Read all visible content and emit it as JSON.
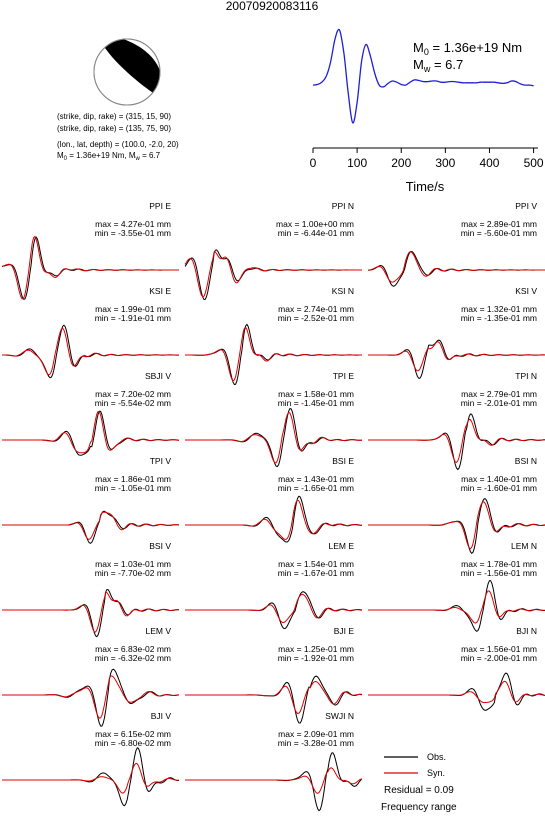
{
  "title": "20070920083116",
  "focal_mechanism": {
    "plane1": "(strike, dip, rake) = (315, 15, 90)",
    "plane2": "(strike, dip, rake) = (135, 75, 90)",
    "location": "(lon., lat, depth) = (100.0, -2.0, 20)",
    "moment_label": "M",
    "moment_sub": "0",
    "moment_value": " = 1.36e+19 Nm, M",
    "mag_sub": "w",
    "mag_value": " = 6.7"
  },
  "stf": {
    "m0_label": "M",
    "m0_sub": "0",
    "m0_value": " = 1.36e+19 Nm",
    "mw_label": "M",
    "mw_sub": "w",
    "mw_value": " = 6.7",
    "xlabel": "Time/s",
    "xticks": [
      "0",
      "100",
      "200",
      "300",
      "400",
      "500"
    ],
    "color": "#1f1fd6"
  },
  "legend": {
    "obs": "Obs.",
    "syn": "Syn.",
    "obs_color": "#000000",
    "syn_color": "#e00000",
    "residual": "Residual = 0.09",
    "freq": "Frequency range"
  },
  "chart_data": {
    "type": "line",
    "source_time_function": {
      "x": [
        0,
        10,
        20,
        30,
        40,
        50,
        60,
        70,
        80,
        90,
        100,
        110,
        120,
        130,
        140,
        150,
        160,
        170,
        180,
        190,
        200,
        210,
        220,
        230,
        240,
        250,
        260,
        270,
        280,
        290,
        300,
        310,
        320,
        330,
        340,
        350,
        360,
        370,
        380,
        390,
        400,
        410,
        420,
        430,
        440,
        450,
        460,
        470,
        480,
        490,
        500
      ],
      "y": [
        0.05,
        0.06,
        0.1,
        0.2,
        0.45,
        0.85,
        1.0,
        0.6,
        -0.1,
        -0.6,
        -0.25,
        0.45,
        0.75,
        0.55,
        0.25,
        0.05,
        0.02,
        0.08,
        0.12,
        0.1,
        0.06,
        0.05,
        0.1,
        0.14,
        0.13,
        0.11,
        0.11,
        0.12,
        0.12,
        0.1,
        0.1,
        0.11,
        0.11,
        0.1,
        0.09,
        0.09,
        0.09,
        0.09,
        0.1,
        0.1,
        0.1,
        0.1,
        0.09,
        0.08,
        0.09,
        0.12,
        0.11,
        0.07,
        0.05,
        0.05,
        0.04
      ],
      "xlim": [
        0,
        510
      ],
      "xlabel": "Time/s"
    },
    "stations": [
      {
        "label": "PPI E",
        "max": "max = 4.27e-01 mm",
        "min": "min = -3.55e-01 mm",
        "peak": 0.16,
        "width": 0.18,
        "syn_scale": 1.0
      },
      {
        "label": "PPI N",
        "max": "max = 1.00e+00 mm",
        "min": "min = -6.44e-01 mm",
        "peak": 0.16,
        "width": 0.2,
        "syn_scale": 0.95
      },
      {
        "label": "PPI V",
        "max": "max = 2.89e-01 mm",
        "min": "min = -5.60e-01 mm",
        "peak": 0.2,
        "width": 0.14,
        "syn_scale": 0.85
      },
      {
        "label": "KSI E",
        "max": "max = 1.99e-01 mm",
        "min": "min = -1.91e-01 mm",
        "peak": 0.3,
        "width": 0.18,
        "syn_scale": 0.85
      },
      {
        "label": "KSI N",
        "max": "max = 2.74e-01 mm",
        "min": "min = -2.52e-01 mm",
        "peak": 0.32,
        "width": 0.16,
        "syn_scale": 0.9
      },
      {
        "label": "KSI V",
        "max": "max = 1.32e-01 mm",
        "min": "min = -1.35e-01 mm",
        "peak": 0.34,
        "width": 0.14,
        "syn_scale": 0.75
      },
      {
        "label": "SBJI V",
        "max": "max = 7.20e-02 mm",
        "min": "min = -5.54e-02 mm",
        "peak": 0.5,
        "width": 0.18,
        "syn_scale": 0.9
      },
      {
        "label": "TPI E",
        "max": "max = 1.58e-01 mm",
        "min": "min = -1.45e-01 mm",
        "peak": 0.55,
        "width": 0.2,
        "syn_scale": 0.85
      },
      {
        "label": "TPI N",
        "max": "max = 2.79e-01 mm",
        "min": "min = -2.01e-01 mm",
        "peak": 0.55,
        "width": 0.16,
        "syn_scale": 0.8
      },
      {
        "label": "TPI V",
        "max": "max = 1.86e-01 mm",
        "min": "min = -1.05e-01 mm",
        "peak": 0.55,
        "width": 0.12,
        "syn_scale": 0.9
      },
      {
        "label": "BSI E",
        "max": "max = 1.43e-01 mm",
        "min": "min = -1.65e-01 mm",
        "peak": 0.6,
        "width": 0.18,
        "syn_scale": 0.8
      },
      {
        "label": "BSI N",
        "max": "max = 1.40e-01 mm",
        "min": "min = -1.60e-01 mm",
        "peak": 0.62,
        "width": 0.16,
        "syn_scale": 0.85
      },
      {
        "label": "BSI V",
        "max": "max = 1.03e-01 mm",
        "min": "min = -7.70e-02 mm",
        "peak": 0.58,
        "width": 0.14,
        "syn_scale": 0.9
      },
      {
        "label": "LEM E",
        "max": "max = 1.54e-01 mm",
        "min": "min = -1.67e-01 mm",
        "peak": 0.62,
        "width": 0.16,
        "syn_scale": 0.75
      },
      {
        "label": "LEM N",
        "max": "max = 1.78e-01 mm",
        "min": "min = -1.56e-01 mm",
        "peak": 0.64,
        "width": 0.16,
        "syn_scale": 0.6
      },
      {
        "label": "LEM V",
        "max": "max = 6.83e-02 mm",
        "min": "min = -6.32e-02 mm",
        "peak": 0.6,
        "width": 0.22,
        "syn_scale": 0.75
      },
      {
        "label": "BJI E",
        "max": "max = 1.25e-01 mm",
        "min": "min = -1.92e-01 mm",
        "peak": 0.7,
        "width": 0.2,
        "syn_scale": 0.7
      },
      {
        "label": "BJI N",
        "max": "max = 1.56e-01 mm",
        "min": "min = -2.00e-01 mm",
        "peak": 0.72,
        "width": 0.16,
        "syn_scale": 0.55
      },
      {
        "label": "BJI V",
        "max": "max = 6.15e-02 mm",
        "min": "min = -6.80e-02 mm",
        "peak": 0.72,
        "width": 0.2,
        "syn_scale": 0.5
      },
      {
        "label": "SWJI N",
        "max": "max = 2.09e-01 mm",
        "min": "min = -3.28e-01 mm",
        "peak": 0.8,
        "width": 0.18,
        "syn_scale": 0.45
      }
    ]
  }
}
